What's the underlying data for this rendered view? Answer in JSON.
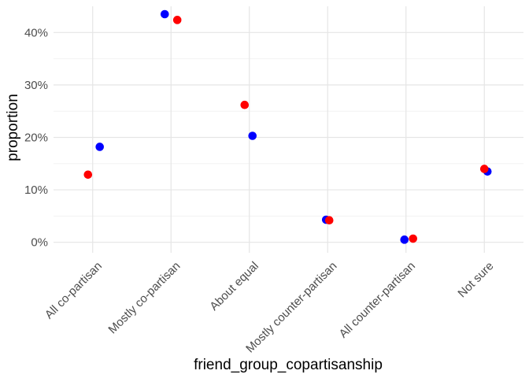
{
  "chart_data": {
    "type": "scatter",
    "xlabel": "friend_group_copartisanship",
    "ylabel": "proportion",
    "categories": [
      "All co-partisan",
      "Mostly co-partisan",
      "About equal",
      "Mostly counter-partisan",
      "All counter-partisan",
      "Not sure"
    ],
    "ylim": [
      -0.02,
      0.45
    ],
    "yticks": [
      0,
      0.1,
      0.2,
      0.3,
      0.4
    ],
    "ytick_labels": [
      "0%",
      "10%",
      "20%",
      "30%",
      "40%"
    ],
    "grid": true,
    "series": [
      {
        "color": "#0000ff",
        "values": [
          0.182,
          0.435,
          0.203,
          0.043,
          0.005,
          0.135
        ],
        "jitter": [
          0.09,
          -0.08,
          0.04,
          -0.02,
          -0.02,
          0.04
        ]
      },
      {
        "color": "#ff0000",
        "values": [
          0.129,
          0.424,
          0.262,
          0.042,
          0.007,
          0.14
        ],
        "jitter": [
          -0.06,
          0.08,
          -0.06,
          0.02,
          0.09,
          0.0
        ]
      }
    ]
  }
}
